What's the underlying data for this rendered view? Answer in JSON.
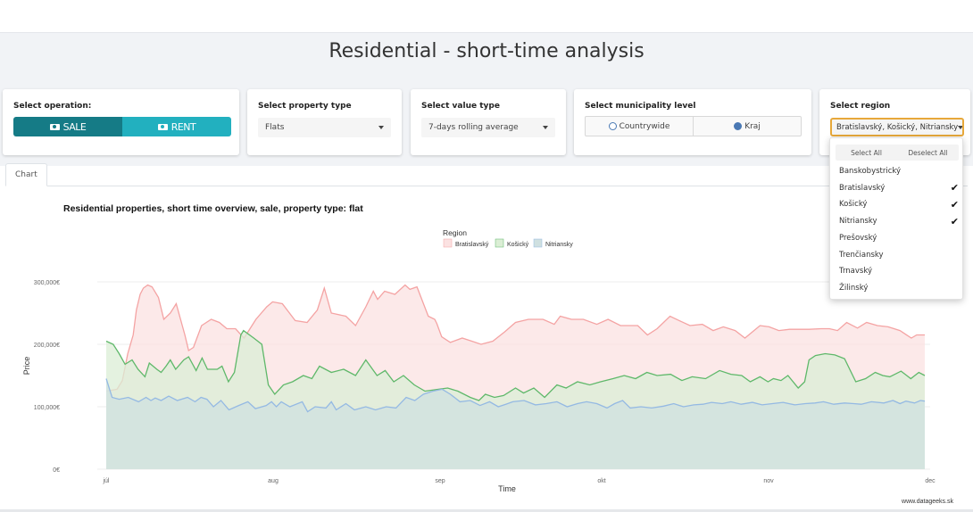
{
  "page": {
    "title": "Residential - short-time analysis"
  },
  "operation": {
    "label": "Select operation:",
    "sale_label": "SALE",
    "rent_label": "RENT",
    "selected": "SALE"
  },
  "property_type": {
    "label": "Select property type",
    "value": "Flats"
  },
  "value_type": {
    "label": "Select value type",
    "value": "7-days rolling average"
  },
  "municipality": {
    "label": "Select municipality level",
    "options": [
      "Countrywide",
      "Kraj"
    ],
    "selected": "Kraj"
  },
  "region": {
    "label": "Select region",
    "value": "Bratislavský, Košický, Nitriansky",
    "select_all": "Select All",
    "deselect_all": "Deselect All",
    "options": [
      {
        "name": "Banskobystrický",
        "checked": false
      },
      {
        "name": "Bratislavský",
        "checked": true
      },
      {
        "name": "Košický",
        "checked": true
      },
      {
        "name": "Nitriansky",
        "checked": true
      },
      {
        "name": "Prešovský",
        "checked": false
      },
      {
        "name": "Trenčiansky",
        "checked": false
      },
      {
        "name": "Trnavský",
        "checked": false
      },
      {
        "name": "Žilinský",
        "checked": false
      }
    ]
  },
  "tabs": [
    {
      "label": "Chart",
      "active": true
    }
  ],
  "colors": {
    "sale": "#157b86",
    "rent": "#22b0bf",
    "accent": "#e7a83a",
    "radio": "#4a79b4"
  },
  "chart_data": {
    "type": "area",
    "title": "Residential properties, short time overview, sale, property type: flat",
    "xlabel": "Time",
    "ylabel": "Price",
    "legend_title": "Region",
    "legend_position": "top-center",
    "source": "www.datageeks.sk",
    "x_ticks": [
      "júl",
      "aug",
      "sep",
      "okt",
      "nov",
      "dec"
    ],
    "x_range_days": [
      0,
      153
    ],
    "y_ticks": [
      "0€",
      "100,000€",
      "200,000€",
      "300,000€"
    ],
    "ylim": [
      0,
      300000
    ],
    "series": [
      {
        "name": "Bratislavský",
        "color": "#f4a3a3",
        "fill": "#fbe2e2",
        "days": [
          0,
          2,
          3,
          4,
          5,
          5.6,
          6.3,
          6.9,
          7.7,
          8.5,
          9.7,
          10.7,
          11.9,
          13,
          14.6,
          15.3,
          16.2,
          17.7,
          19.5,
          21,
          22.4,
          24,
          25.6,
          27.8,
          29.8,
          30.9,
          32.7,
          35.1,
          37.3,
          39.2,
          40.5,
          41.8,
          44.5,
          46.3,
          48.2,
          49.6,
          50.4,
          51.7,
          53.6,
          55.5,
          56.4,
          57.7,
          59.8,
          61,
          61.4,
          62.3,
          63.9,
          66.1,
          67.9,
          69.6,
          71.8,
          74,
          76,
          78.4,
          81.1,
          83.2,
          84.3,
          86.4,
          88.6,
          91.1,
          93.2,
          95.5,
          96.5,
          98.7,
          100.5,
          102.3,
          104.7,
          106.4,
          108.4,
          110.7,
          112.7,
          114.6,
          116.8,
          118.6,
          121.4,
          123.1,
          124.9,
          126.9,
          128.7,
          130.5,
          132.8,
          134.3,
          135.8,
          137.5,
          139.5,
          141.2,
          143.2,
          145.2,
          147.4,
          149.5,
          150.5,
          152
        ],
        "values": [
          125000,
          128000,
          142000,
          185000,
          215000,
          255000,
          280000,
          290000,
          295000,
          292000,
          275000,
          240000,
          250000,
          265000,
          215000,
          190000,
          195000,
          230000,
          240000,
          235000,
          225000,
          225000,
          210000,
          240000,
          260000,
          268000,
          265000,
          238000,
          235000,
          255000,
          290000,
          250000,
          245000,
          230000,
          260000,
          285000,
          272000,
          285000,
          280000,
          295000,
          288000,
          292000,
          245000,
          240000,
          233000,
          212000,
          203000,
          210000,
          205000,
          200000,
          205000,
          220000,
          235000,
          240000,
          240000,
          232000,
          245000,
          240000,
          240000,
          232000,
          240000,
          230000,
          230000,
          230000,
          215000,
          225000,
          245000,
          238000,
          230000,
          232000,
          222000,
          228000,
          222000,
          210000,
          230000,
          228000,
          222000,
          224000,
          224000,
          224000,
          225000,
          225000,
          222000,
          235000,
          226000,
          235000,
          230000,
          228000,
          222000,
          210000,
          215000,
          215000
        ]
      },
      {
        "name": "Košický",
        "color": "#5fb86a",
        "fill": "#dbeed5",
        "days": [
          0,
          1.3,
          2.4,
          3.5,
          4.8,
          5.9,
          7.2,
          8,
          9.4,
          10.2,
          11.1,
          11.9,
          12.9,
          14.4,
          15.3,
          16.7,
          17.8,
          18.8,
          20.6,
          21.5,
          22.7,
          23.8,
          25,
          25.5,
          27.4,
          28.9,
          30.1,
          31.3,
          32.9,
          34.6,
          36.6,
          38.2,
          39.6,
          41.8,
          44.1,
          46.3,
          48.2,
          50.3,
          51.8,
          53.4,
          55.2,
          57.2,
          59.2,
          61.7,
          63.4,
          65.3,
          67.6,
          69.2,
          70.4,
          72.1,
          73.8,
          76,
          77.5,
          79.4,
          81.4,
          83.7,
          85.4,
          87.5,
          89.8,
          91.8,
          94.1,
          96.2,
          98.3,
          100.4,
          102.3,
          104.8,
          106.9,
          108.8,
          111.3,
          113.9,
          116,
          118,
          119.6,
          121.4,
          122.9,
          123.9,
          125.3,
          126.6,
          128.5,
          129.7,
          130.5,
          131.7,
          133.5,
          135.3,
          137.1,
          139.2,
          141,
          142.8,
          144.2,
          145.5,
          147.6,
          149.4,
          150.9,
          152
        ],
        "values": [
          205000,
          200000,
          185000,
          168000,
          175000,
          160000,
          148000,
          170000,
          160000,
          155000,
          165000,
          175000,
          160000,
          175000,
          180000,
          158000,
          178000,
          160000,
          160000,
          165000,
          140000,
          155000,
          215000,
          222000,
          210000,
          200000,
          135000,
          120000,
          135000,
          140000,
          150000,
          145000,
          165000,
          155000,
          160000,
          150000,
          175000,
          150000,
          158000,
          140000,
          150000,
          135000,
          125000,
          128000,
          130000,
          125000,
          115000,
          110000,
          120000,
          115000,
          118000,
          130000,
          122000,
          130000,
          115000,
          135000,
          130000,
          140000,
          135000,
          140000,
          145000,
          150000,
          145000,
          155000,
          150000,
          152000,
          142000,
          148000,
          145000,
          158000,
          152000,
          150000,
          140000,
          148000,
          140000,
          145000,
          142000,
          150000,
          130000,
          140000,
          175000,
          182000,
          185000,
          183000,
          177000,
          140000,
          145000,
          155000,
          150000,
          148000,
          157000,
          145000,
          155000,
          150000
        ]
      },
      {
        "name": "Nitriansky",
        "color": "#94b9e3",
        "fill": "#cfe0e0",
        "days": [
          0,
          1.1,
          2.4,
          4.1,
          6,
          7.4,
          8.3,
          9.1,
          10.2,
          11.6,
          13.2,
          15.1,
          16.5,
          17.6,
          18.7,
          19.9,
          21.3,
          22.8,
          24.6,
          26.3,
          27.7,
          29.7,
          30.7,
          31.6,
          32.5,
          34.1,
          36.4,
          37.4,
          38.8,
          40.8,
          41.8,
          42.7,
          44.5,
          46.1,
          48.2,
          50,
          52,
          53.8,
          55.7,
          57.3,
          58.9,
          60.7,
          62.4,
          63.9,
          65.7,
          67.6,
          69.4,
          71.2,
          72.8,
          74.2,
          75.5,
          77.6,
          79.7,
          81.7,
          83.7,
          85.6,
          87.5,
          89.2,
          91.1,
          93,
          94.4,
          95.9,
          97.3,
          99.3,
          101.3,
          103.5,
          105.4,
          107.2,
          109.1,
          110.8,
          112.4,
          114.4,
          116,
          117.9,
          120,
          121.8,
          123.7,
          125.7,
          127.9,
          129.8,
          131.6,
          133.2,
          135.1,
          137.1,
          138.8,
          140.2,
          142.1,
          144.4,
          146.1,
          147.4,
          148.5,
          150.1,
          151.2,
          152
        ],
        "values": [
          145000,
          115000,
          112000,
          115000,
          108000,
          115000,
          110000,
          114000,
          110000,
          117000,
          110000,
          115000,
          108000,
          115000,
          112000,
          100000,
          110000,
          95000,
          102000,
          108000,
          97000,
          102000,
          108000,
          100000,
          108000,
          100000,
          108000,
          92000,
          100000,
          98000,
          108000,
          95000,
          105000,
          95000,
          100000,
          95000,
          100000,
          98000,
          115000,
          110000,
          120000,
          125000,
          128000,
          120000,
          108000,
          110000,
          102000,
          108000,
          100000,
          104000,
          108000,
          110000,
          103000,
          105000,
          108000,
          100000,
          105000,
          108000,
          105000,
          98000,
          105000,
          110000,
          98000,
          100000,
          98000,
          101000,
          105000,
          100000,
          103000,
          104000,
          107000,
          105000,
          108000,
          104000,
          107000,
          103000,
          105000,
          107000,
          103000,
          105000,
          106000,
          108000,
          104000,
          106000,
          105000,
          104000,
          108000,
          106000,
          110000,
          105000,
          109000,
          106000,
          110000,
          109000
        ]
      }
    ]
  }
}
